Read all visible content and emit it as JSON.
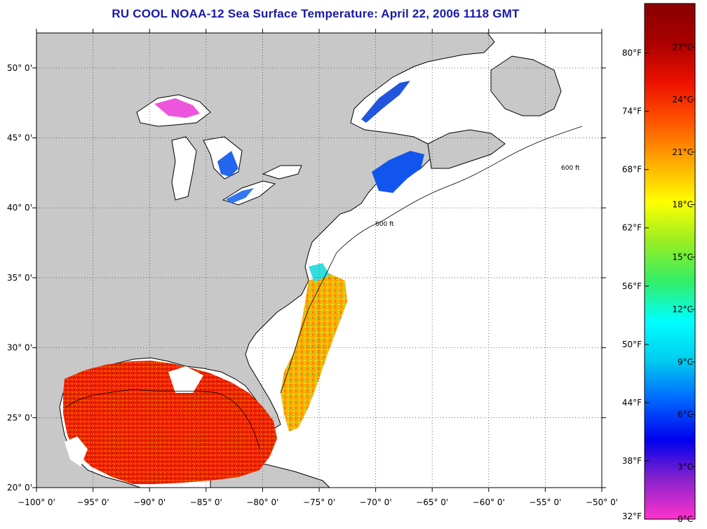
{
  "title": "RU COOL  NOAA-12  Sea Surface Temperature:  April 22, 2006 1118 GMT",
  "map": {
    "lon_range": [
      -100,
      -50
    ],
    "lat_range": [
      20,
      52.5
    ],
    "lon_ticks": [
      {
        "v": -100,
        "label": "−100° 0'"
      },
      {
        "v": -95,
        "label": "−95° 0'"
      },
      {
        "v": -90,
        "label": "−90° 0'"
      },
      {
        "v": -85,
        "label": "−85° 0'"
      },
      {
        "v": -80,
        "label": "−80° 0'"
      },
      {
        "v": -75,
        "label": "−75° 0'"
      },
      {
        "v": -70,
        "label": "−70° 0'"
      },
      {
        "v": -65,
        "label": "−65° 0'"
      },
      {
        "v": -60,
        "label": "−60° 0'"
      },
      {
        "v": -55,
        "label": "−55° 0'"
      },
      {
        "v": -50,
        "label": "−50° 0'"
      }
    ],
    "lat_ticks": [
      {
        "v": 20,
        "label": "20° 0'"
      },
      {
        "v": 25,
        "label": "25° 0'"
      },
      {
        "v": 30,
        "label": "30° 0'"
      },
      {
        "v": 35,
        "label": "35° 0'"
      },
      {
        "v": 40,
        "label": "40° 0'"
      },
      {
        "v": 45,
        "label": "45° 0'"
      },
      {
        "v": 50,
        "label": "50° 0'"
      }
    ],
    "contour_label": "600 ft",
    "colors": {
      "land": "#c8c8c8",
      "no_data": "#ffffff",
      "coast": "#000000",
      "grid": "#555555"
    }
  },
  "colorbar": {
    "celsius_ticks": [
      {
        "v": 0,
        "label": "0°C"
      },
      {
        "v": 3,
        "label": "3°C"
      },
      {
        "v": 6,
        "label": "6°C"
      },
      {
        "v": 9,
        "label": "9°C"
      },
      {
        "v": 12,
        "label": "12°C"
      },
      {
        "v": 15,
        "label": "15°C"
      },
      {
        "v": 18,
        "label": "18°C"
      },
      {
        "v": 21,
        "label": "21°C"
      },
      {
        "v": 24,
        "label": "24°C"
      },
      {
        "v": 27,
        "label": "27°C"
      }
    ],
    "fahrenheit_ticks": [
      {
        "v": 32,
        "label": "32°F"
      },
      {
        "v": 38,
        "label": "38°F"
      },
      {
        "v": 44,
        "label": "44°F"
      },
      {
        "v": 50,
        "label": "50°F"
      },
      {
        "v": 56,
        "label": "56°F"
      },
      {
        "v": 62,
        "label": "62°F"
      },
      {
        "v": 68,
        "label": "68°F"
      },
      {
        "v": 74,
        "label": "74°F"
      },
      {
        "v": 80,
        "label": "80°F"
      }
    ],
    "range_c": [
      0,
      29.5
    ],
    "stops": [
      "#ff33cc",
      "#8822cc",
      "#0000ee",
      "#0066ff",
      "#00ccee",
      "#00ffff",
      "#33ee66",
      "#99ee22",
      "#ffff00",
      "#ffaa00",
      "#ff5500",
      "#ee1100",
      "#aa0000",
      "#880000"
    ]
  }
}
